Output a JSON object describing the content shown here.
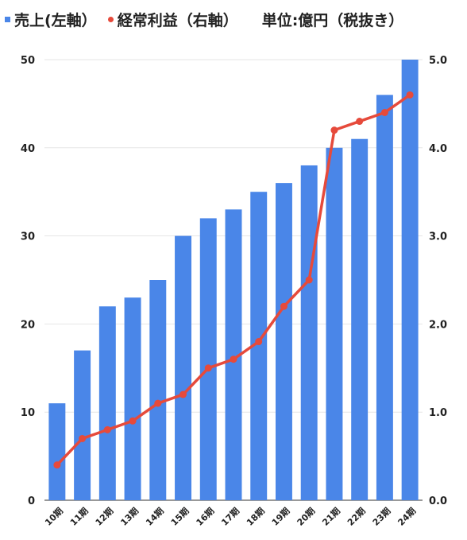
{
  "legend": {
    "bar_label": "売上(左軸）",
    "line_label": "経常利益（右軸）",
    "unit_label": "単位:億円（税抜き）"
  },
  "colors": {
    "bar": "#4a86e8",
    "line": "#e64a3b",
    "grid": "#e6e6e6"
  },
  "chart_data": {
    "type": "bar",
    "categories": [
      "10期",
      "11期",
      "12期",
      "13期",
      "14期",
      "15期",
      "16期",
      "17期",
      "18期",
      "19期",
      "20期",
      "21期",
      "22期",
      "23期",
      "24期"
    ],
    "series": [
      {
        "name": "売上(左軸）",
        "type": "bar",
        "axis": "left",
        "values": [
          11,
          17,
          22,
          23,
          25,
          30,
          32,
          33,
          35,
          36,
          38,
          40,
          41,
          46,
          50
        ]
      },
      {
        "name": "経常利益（右軸）",
        "type": "line",
        "axis": "right",
        "values": [
          0.4,
          0.7,
          0.8,
          0.9,
          1.1,
          1.2,
          1.5,
          1.6,
          1.8,
          2.2,
          2.5,
          4.2,
          4.3,
          4.4,
          4.6
        ]
      }
    ],
    "ylim_left": [
      0,
      50
    ],
    "yticks_left": [
      "0",
      "10",
      "20",
      "30",
      "40",
      "50"
    ],
    "ylim_right": [
      0,
      5
    ],
    "yticks_right": [
      "0.0",
      "1.0",
      "2.0",
      "3.0",
      "4.0",
      "5.0"
    ],
    "grid": true,
    "legend_position": "top-left"
  }
}
